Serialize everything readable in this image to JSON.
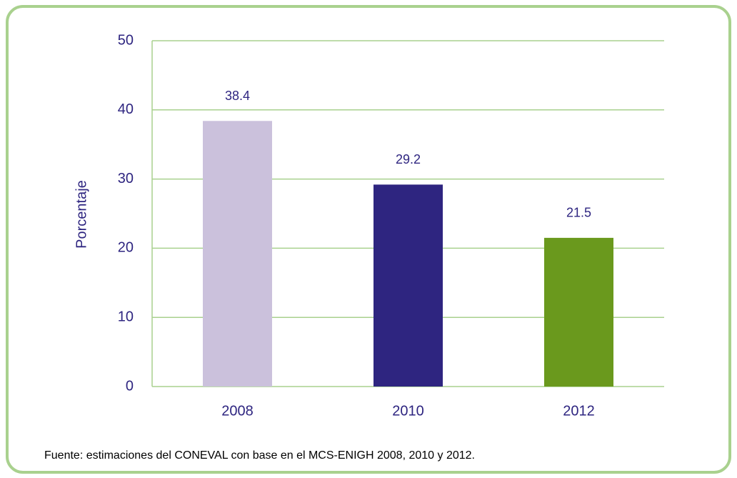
{
  "chart_data": {
    "type": "bar",
    "y_axis_label": "Porcentaje",
    "categories": [
      "2008",
      "2010",
      "2012"
    ],
    "values": [
      38.4,
      29.2,
      21.5
    ],
    "colors": [
      "#cbc1dc",
      "#2e2580",
      "#6a991d"
    ],
    "ylim": [
      0,
      50
    ],
    "yticks": [
      0,
      10,
      20,
      30,
      40,
      50
    ],
    "grid": true,
    "source": "Fuente: estimaciones del CONEVAL con base en el MCS-ENIGH 2008, 2010 y 2012."
  }
}
